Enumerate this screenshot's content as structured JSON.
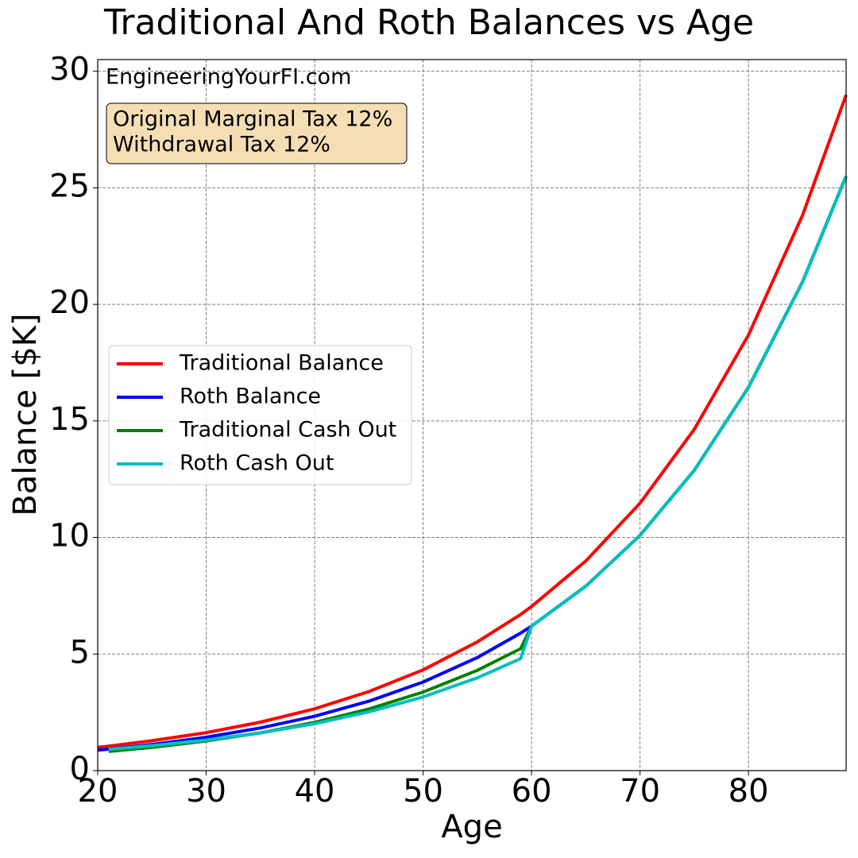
{
  "chart_data": {
    "type": "line",
    "title": "Traditional And Roth Balances vs Age",
    "xlabel": "Age",
    "ylabel": "Balance [$K]",
    "annotations": [
      "EngineeringYourFI.com"
    ],
    "textbox": [
      "Original Marginal Tax 12%",
      "Withdrawal Tax 12%"
    ],
    "x": [
      20,
      21,
      25,
      30,
      35,
      40,
      45,
      50,
      55,
      59,
      60,
      65,
      70,
      75,
      80,
      85,
      89
    ],
    "series": [
      {
        "name": "Traditional Balance",
        "color": "#ff0000",
        "values": [
          1.0,
          1.05,
          1.28,
          1.63,
          2.08,
          2.65,
          3.39,
          4.32,
          5.52,
          6.7,
          7.04,
          8.99,
          11.47,
          14.64,
          18.68,
          23.84,
          28.98
        ]
      },
      {
        "name": "Roth Balance",
        "color": "#0000ff",
        "values": [
          0.88,
          0.92,
          1.12,
          1.43,
          1.83,
          2.33,
          2.98,
          3.8,
          4.85,
          5.9,
          6.2,
          7.91,
          10.09,
          12.88,
          16.44,
          20.98,
          25.5
        ]
      },
      {
        "name": "Traditional Cash Out",
        "color": "#008000",
        "values": [
          null,
          0.82,
          1.0,
          1.27,
          1.62,
          2.07,
          2.64,
          3.37,
          4.3,
          5.23,
          6.2,
          7.91,
          10.09,
          12.88,
          16.44,
          20.98,
          25.5
        ]
      },
      {
        "name": "Roth Cash Out",
        "color": "#00bfbf",
        "values": [
          null,
          0.91,
          1.07,
          1.31,
          1.62,
          2.01,
          2.52,
          3.16,
          3.98,
          4.8,
          6.2,
          7.91,
          10.09,
          12.88,
          16.44,
          20.98,
          25.5
        ]
      }
    ],
    "xlim": [
      20,
      89
    ],
    "ylim": [
      0,
      30.5
    ],
    "xticks": [
      20,
      30,
      40,
      50,
      60,
      70,
      80
    ],
    "yticks": [
      0,
      5,
      10,
      15,
      20,
      25,
      30
    ],
    "grid": true,
    "legend": "center left"
  }
}
